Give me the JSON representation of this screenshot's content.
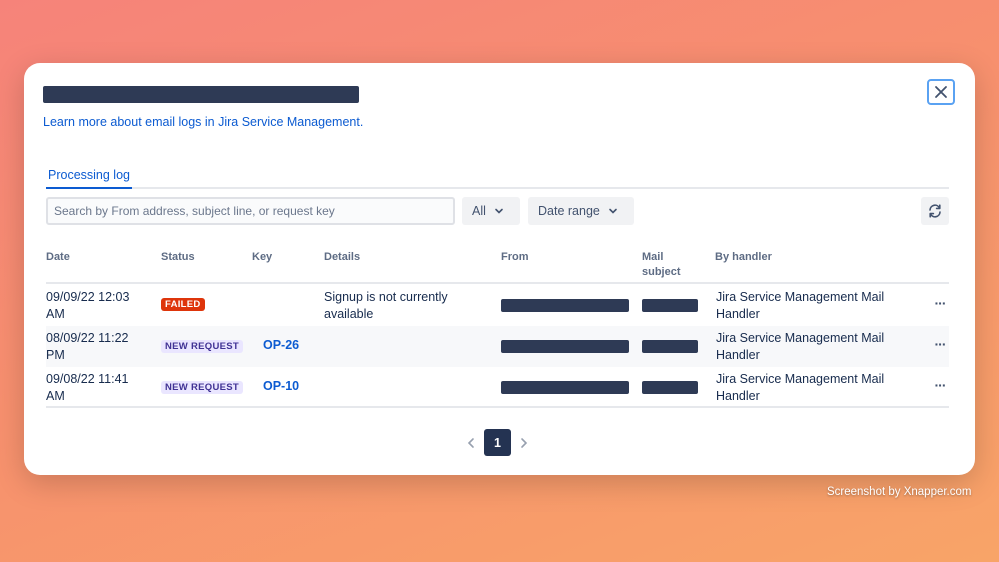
{
  "modal": {
    "learn_more": "Learn more about email logs in Jira Service Management."
  },
  "tabs": [
    {
      "label": "Processing log"
    }
  ],
  "toolbar": {
    "search_placeholder": "Search by From address, subject line, or request key",
    "status_filter": "All",
    "date_filter": "Date range"
  },
  "table": {
    "headers": {
      "date": "Date",
      "status": "Status",
      "key": "Key",
      "details": "Details",
      "from": "From",
      "mail_subject_1": "Mail",
      "mail_subject_2": "subject",
      "handler": "By handler"
    },
    "rows": [
      {
        "date_1": "09/09/22 12:03",
        "date_2": "AM",
        "status": "FAILED",
        "key": "",
        "details_1": "Signup is not currently",
        "details_2": "available",
        "handler_1": "Jira Service Management Mail",
        "handler_2": "Handler"
      },
      {
        "date_1": "08/09/22 11:22",
        "date_2": "PM",
        "status": "NEW REQUEST",
        "key": "OP-26",
        "details_1": "",
        "details_2": "",
        "handler_1": "Jira Service Management Mail",
        "handler_2": "Handler"
      },
      {
        "date_1": "09/08/22 11:41",
        "date_2": "AM",
        "status": "NEW REQUEST",
        "key": "OP-10",
        "details_1": "",
        "details_2": "",
        "handler_1": "Jira Service Management Mail",
        "handler_2": "Handler"
      }
    ],
    "more_label": "···"
  },
  "pagination": {
    "current": "1"
  },
  "credit": "Screenshot by Xnapper.com",
  "colors": {
    "accent": "#0c5bd1",
    "failed": "#de350b",
    "new_request_bg": "#eae6ff",
    "new_request_text": "#403294",
    "redaction": "#2e3a55"
  },
  "icons": {
    "close": "close-icon",
    "dropdown": "chevron-down-icon",
    "refresh": "refresh-icon",
    "prev": "chevron-left-icon",
    "next": "chevron-right-icon"
  }
}
